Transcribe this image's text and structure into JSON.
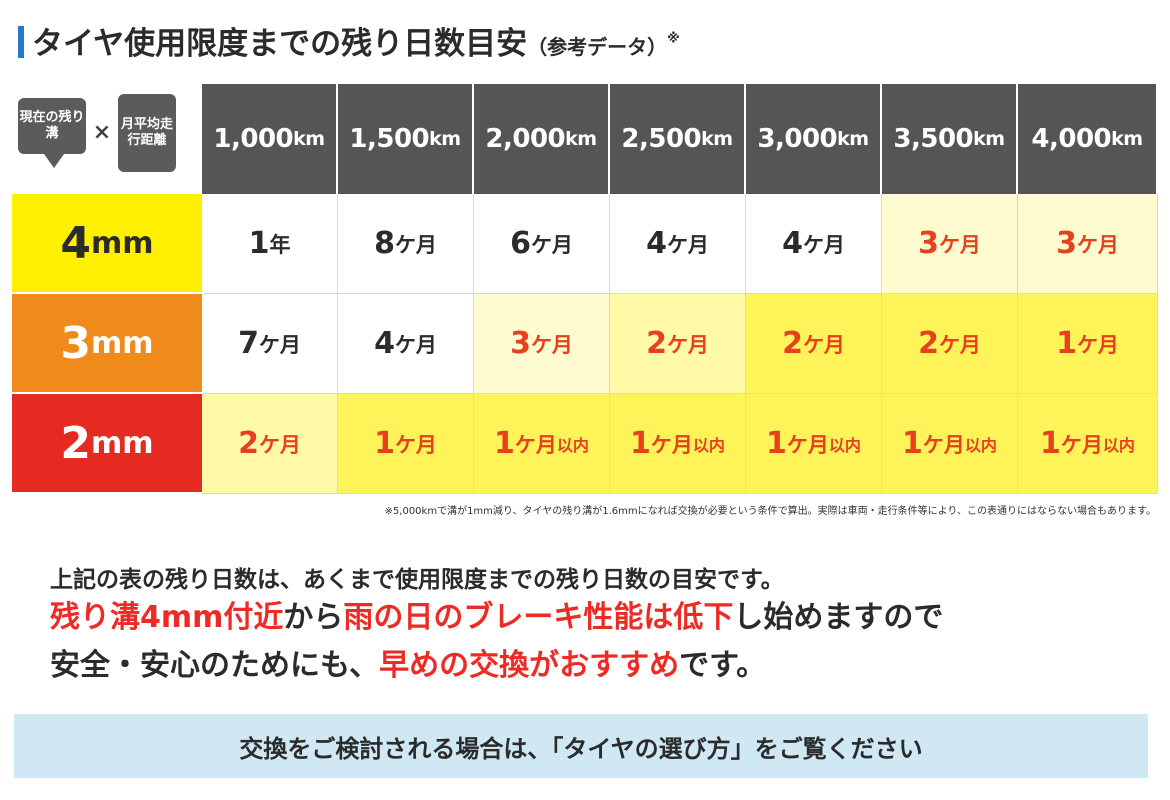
{
  "title": {
    "main": "タイヤ使用限度までの残り日数目安",
    "sub": "（参考データ）",
    "mark": "※"
  },
  "corner": {
    "tread_label": "現在の残り溝",
    "times": "×",
    "distance_label": "月平均走行距離"
  },
  "columns": [
    {
      "num": "1,000",
      "unit": "km"
    },
    {
      "num": "1,500",
      "unit": "km"
    },
    {
      "num": "2,000",
      "unit": "km"
    },
    {
      "num": "2,500",
      "unit": "km"
    },
    {
      "num": "3,000",
      "unit": "km"
    },
    {
      "num": "3,500",
      "unit": "km"
    },
    {
      "num": "4,000",
      "unit": "km"
    }
  ],
  "rows": [
    {
      "num": "4",
      "unit": "mm",
      "cells": [
        {
          "n": "1",
          "u": "年",
          "w": ""
        },
        {
          "n": "8",
          "u": "ケ月",
          "w": ""
        },
        {
          "n": "6",
          "u": "ケ月",
          "w": ""
        },
        {
          "n": "4",
          "u": "ケ月",
          "w": ""
        },
        {
          "n": "4",
          "u": "ケ月",
          "w": ""
        },
        {
          "n": "3",
          "u": "ケ月",
          "w": ""
        },
        {
          "n": "3",
          "u": "ケ月",
          "w": ""
        }
      ]
    },
    {
      "num": "3",
      "unit": "mm",
      "cells": [
        {
          "n": "7",
          "u": "ケ月",
          "w": ""
        },
        {
          "n": "4",
          "u": "ケ月",
          "w": ""
        },
        {
          "n": "3",
          "u": "ケ月",
          "w": ""
        },
        {
          "n": "2",
          "u": "ケ月",
          "w": ""
        },
        {
          "n": "2",
          "u": "ケ月",
          "w": ""
        },
        {
          "n": "2",
          "u": "ケ月",
          "w": ""
        },
        {
          "n": "1",
          "u": "ケ月",
          "w": ""
        }
      ]
    },
    {
      "num": "2",
      "unit": "mm",
      "cells": [
        {
          "n": "2",
          "u": "ケ月",
          "w": ""
        },
        {
          "n": "1",
          "u": "ケ月",
          "w": ""
        },
        {
          "n": "1",
          "u": "ケ月",
          "w": "以内"
        },
        {
          "n": "1",
          "u": "ケ月",
          "w": "以内"
        },
        {
          "n": "1",
          "u": "ケ月",
          "w": "以内"
        },
        {
          "n": "1",
          "u": "ケ月",
          "w": "以内"
        },
        {
          "n": "1",
          "u": "ケ月",
          "w": "以内"
        }
      ]
    }
  ],
  "footnote": "※5,000kmで溝が1mm減り、タイヤの残り溝が1.6mmになれば交換が必要という条件で算出。実際は車両・走行条件等により、この表通りにはならない場合もあります。",
  "message": {
    "line1": "上記の表の残り日数は、あくまで使用限度までの残り日数の目安です。",
    "line2_hl1": "残り溝4mm付近",
    "line2_mid": "から",
    "line2_hl2": "雨の日のブレーキ性能は低下",
    "line2_end": "し始めますので",
    "line3_start": "安全・安心のためにも、",
    "line3_hl": "早めの交換がおすすめ",
    "line3_end": "です。"
  },
  "banner": "交換をご検討される場合は、「タイヤの選び方」をご覧ください",
  "colors": {
    "header_gray": "#555555",
    "row_4mm": "#fff000",
    "row_3mm": "#f08a1a",
    "row_2mm": "#e52a22",
    "highlight_red": "#ee2a24",
    "banner_blue": "#cfe8f4"
  }
}
